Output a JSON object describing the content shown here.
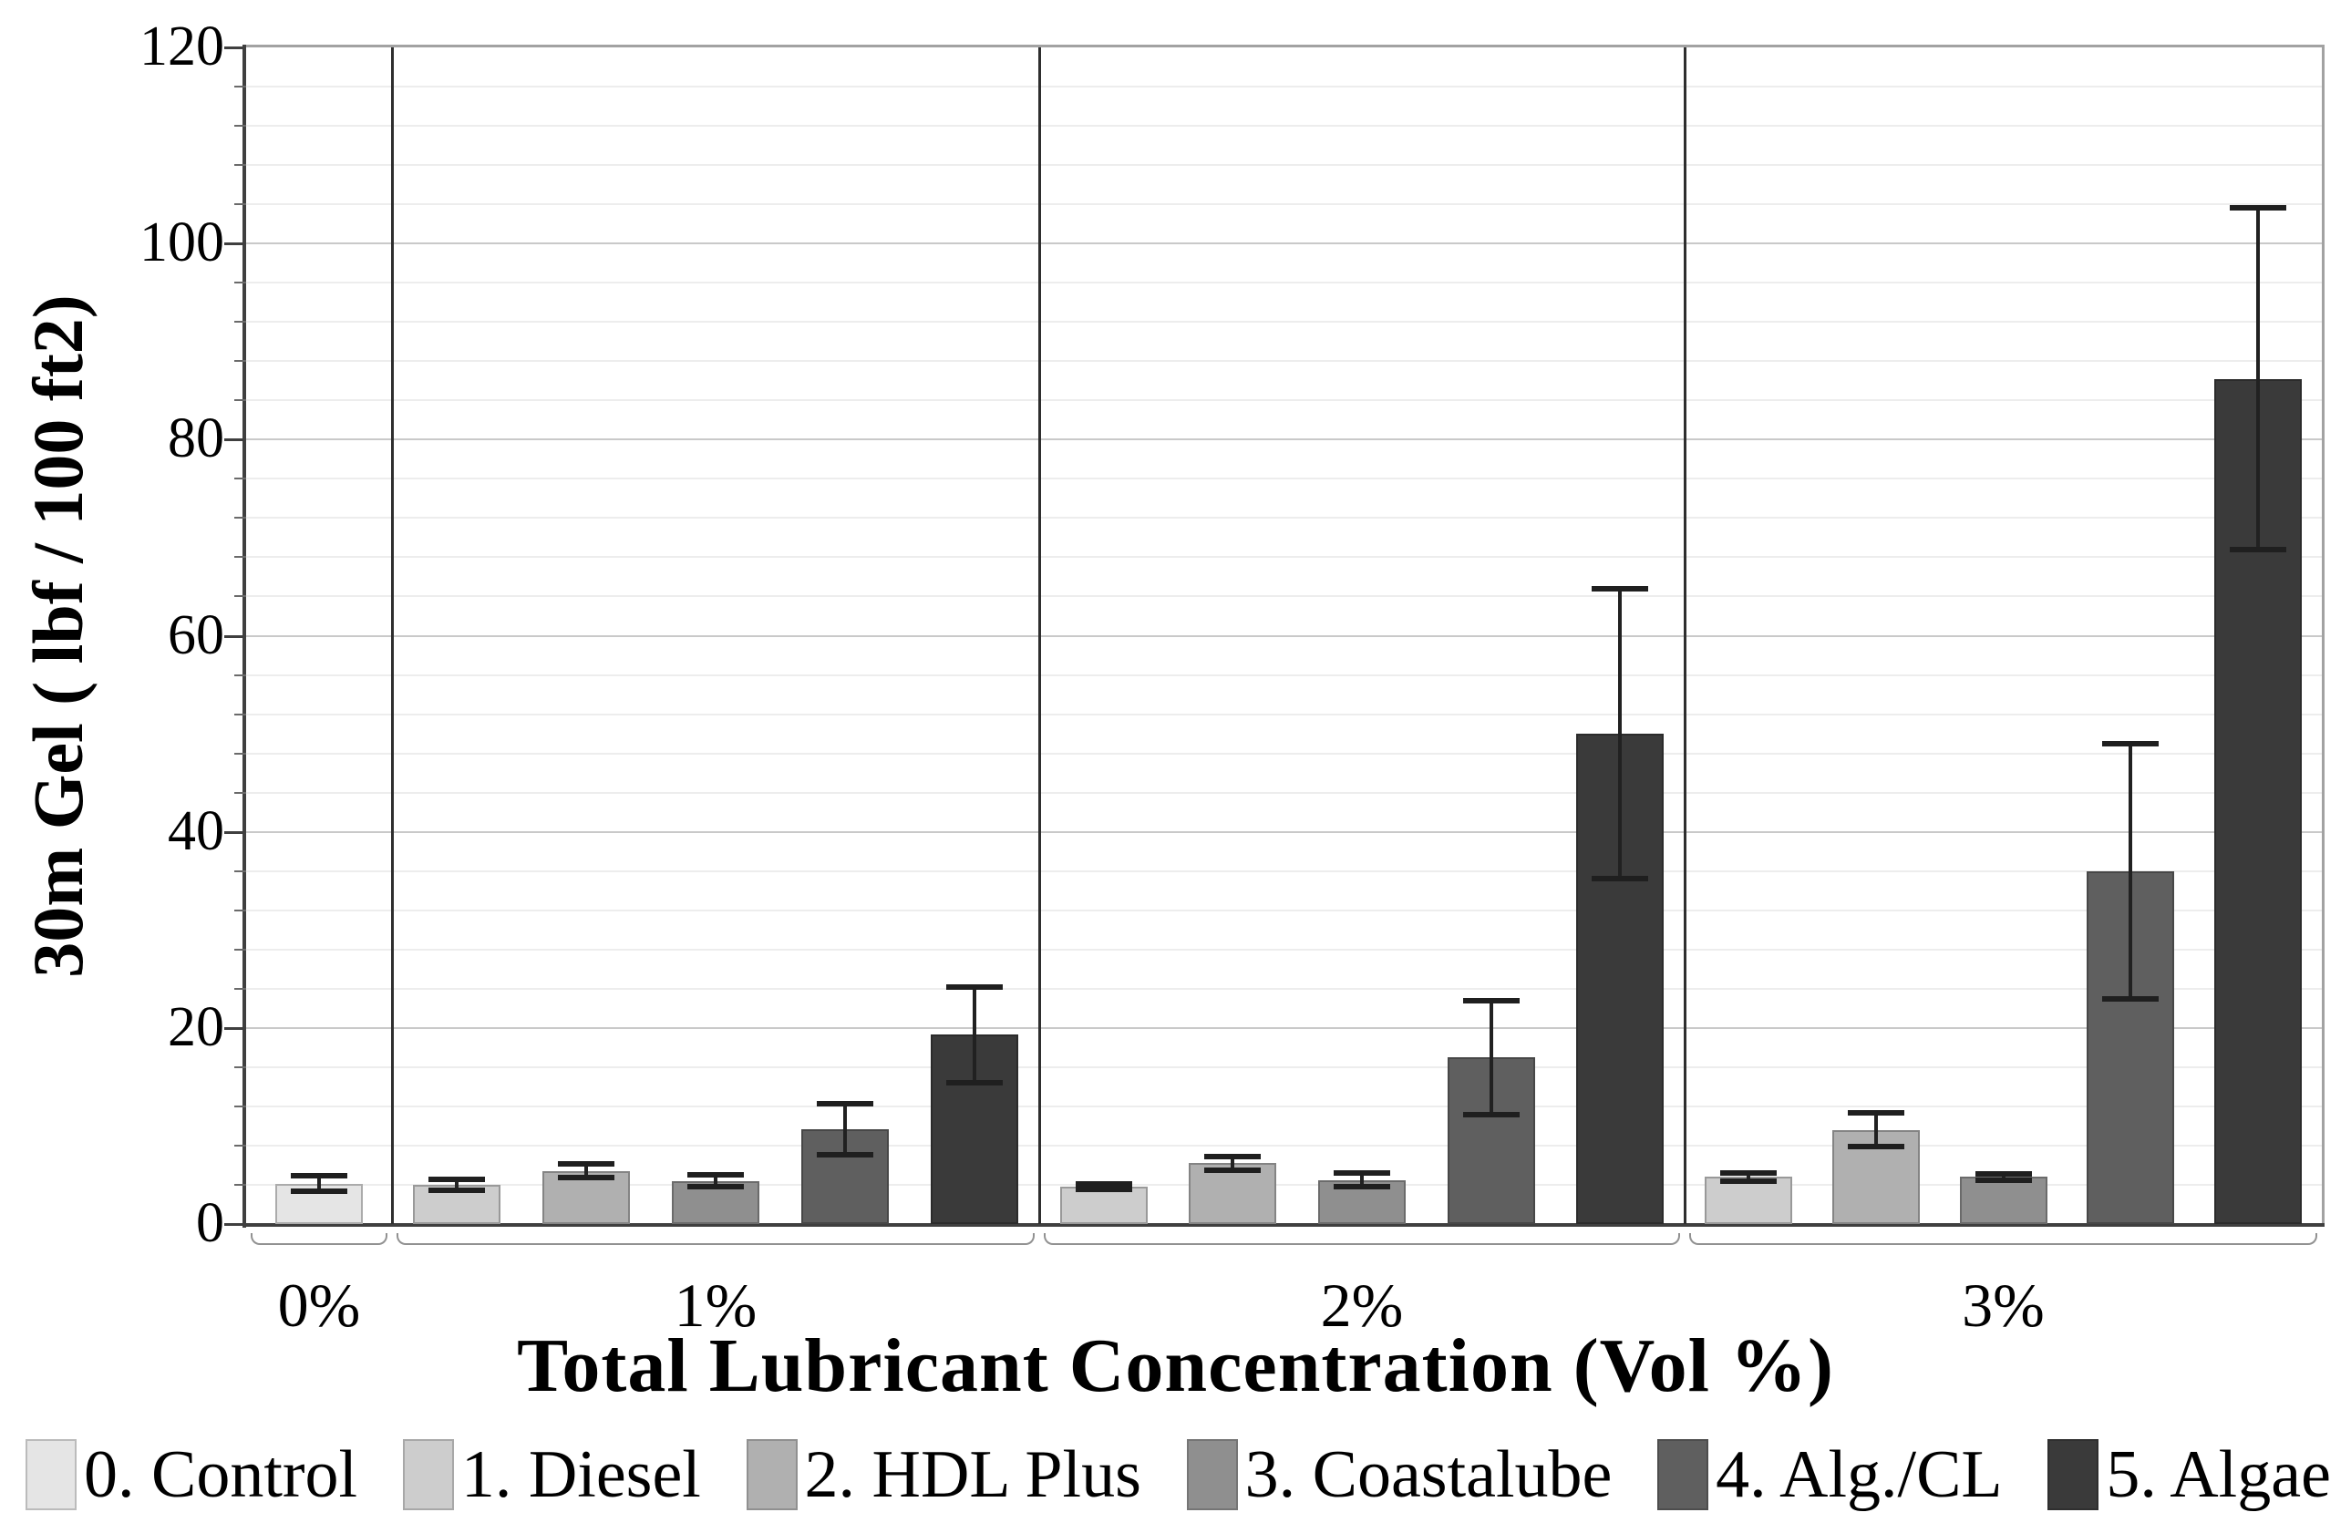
{
  "chart_data": {
    "type": "bar",
    "title": "",
    "xlabel": "Total Lubricant Concentration (Vol %)",
    "ylabel": "30m Gel ( lbf / 100 ft2)",
    "ylim": [
      0,
      120
    ],
    "ytick_major_step": 20,
    "ytick_minor_step": 4,
    "ytick_labels": [
      "0",
      "20",
      "40",
      "60",
      "80",
      "100",
      "120"
    ],
    "grid": "horizontal, light minor lines every 4 and darker major lines every 20",
    "legend_position": "bottom row",
    "error_bars": true,
    "group_dividers": true,
    "categories": [
      "0%",
      "1%",
      "2%",
      "3%"
    ],
    "series": [
      {
        "name": "0. Control",
        "color": "#e5e5e5",
        "values": [
          4.1,
          null,
          null,
          null
        ],
        "errors": [
          0.8,
          null,
          null,
          null
        ]
      },
      {
        "name": "1. Diesel",
        "color": "#cdcdcd",
        "values": [
          null,
          4.0,
          3.8,
          4.8
        ],
        "errors": [
          null,
          0.6,
          0.3,
          0.4
        ]
      },
      {
        "name": "2. HDL Plus",
        "color": "#b0b0b0",
        "values": [
          null,
          5.4,
          6.2,
          9.6
        ],
        "errors": [
          null,
          0.7,
          0.7,
          1.7
        ]
      },
      {
        "name": "3. Coastalube",
        "color": "#8f8f8f",
        "values": [
          null,
          4.4,
          4.5,
          4.8
        ],
        "errors": [
          null,
          0.6,
          0.7,
          0.3
        ]
      },
      {
        "name": "4. Alg./CL",
        "color": "#5f5f5f",
        "values": [
          null,
          9.7,
          17.0,
          36.0
        ],
        "errors": [
          null,
          2.6,
          5.8,
          13.0
        ]
      },
      {
        "name": "5. Algae",
        "color": "#3a3a3a",
        "values": [
          null,
          19.3,
          50.0,
          86.2
        ],
        "errors": [
          null,
          4.9,
          14.8,
          17.4
        ]
      }
    ]
  }
}
